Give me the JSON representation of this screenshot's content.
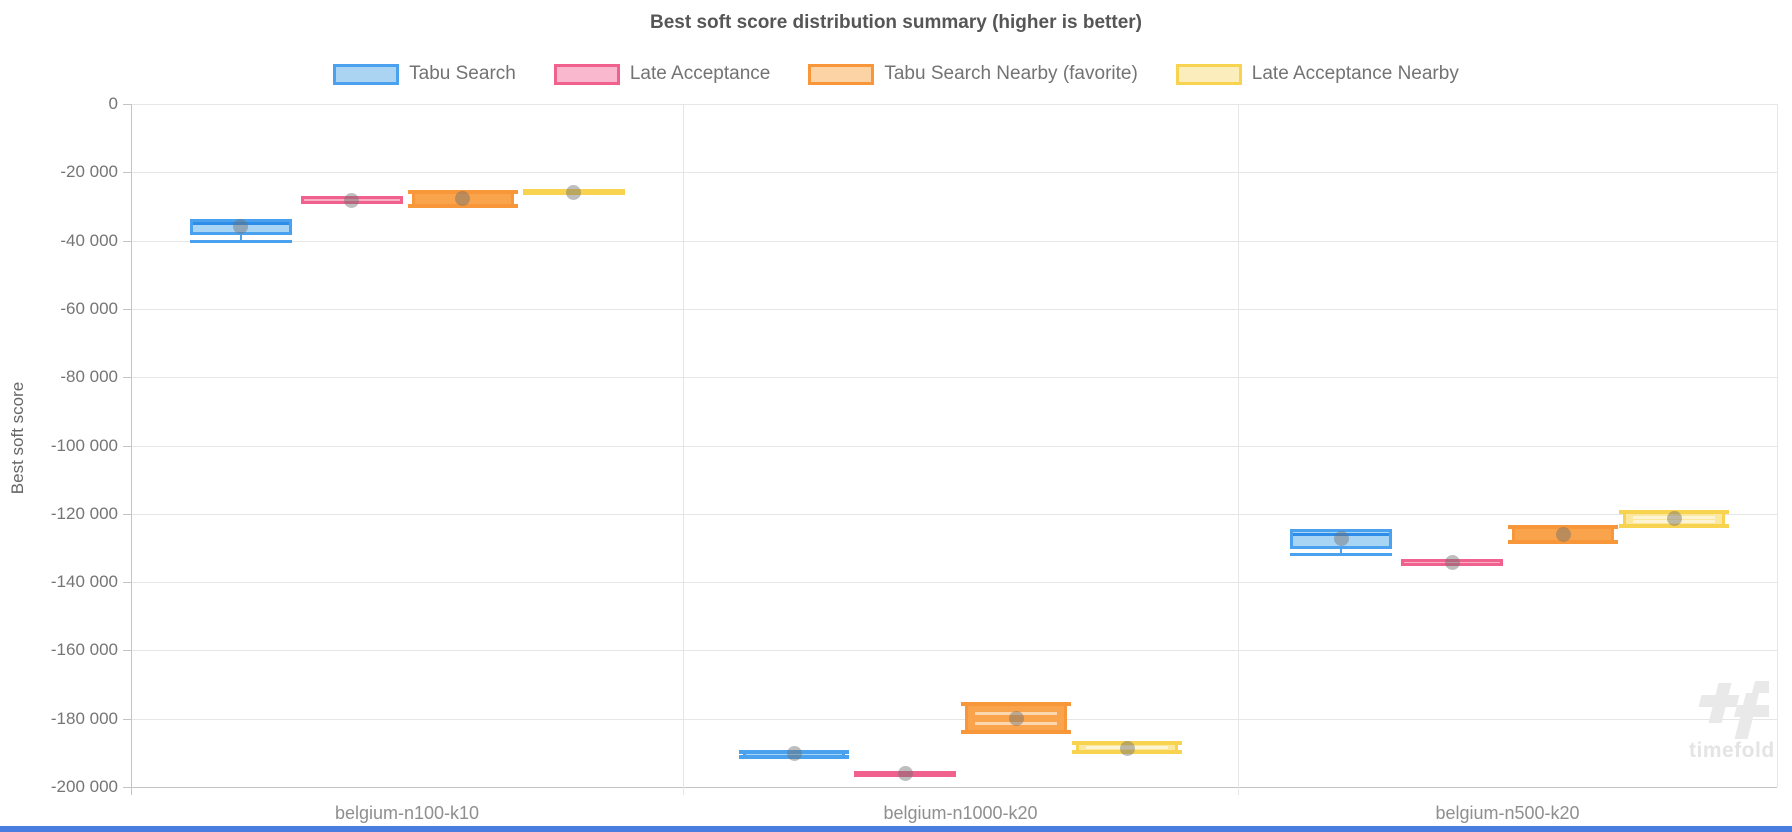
{
  "title": "Best soft score distribution summary (higher is better)",
  "watermark": {
    "logo": "timefold-logo",
    "text": "timefold"
  },
  "chart_data": {
    "type": "boxplot",
    "title": "Best soft score distribution summary (higher is better)",
    "ylabel": "Best soft score",
    "ylim": [
      -200000,
      0
    ],
    "grid": true,
    "legend_position": "top-center",
    "y_ticks": {
      "values": [
        0,
        -20000,
        -40000,
        -60000,
        -80000,
        -100000,
        -120000,
        -140000,
        -160000,
        -180000,
        -200000
      ],
      "labels": [
        "0",
        "-20 000",
        "-40 000",
        "-60 000",
        "-80 000",
        "-100 000",
        "-120 000",
        "-140 000",
        "-160 000",
        "-180 000",
        "-200 000"
      ]
    },
    "categories": [
      "belgium-n100-k10",
      "belgium-n1000-k20",
      "belgium-n500-k20"
    ],
    "series": [
      {
        "name": "Tabu Search",
        "colors": {
          "border": "#4aa2ef",
          "fill": "#a9d5f5",
          "legend_fill": "#abd4f3",
          "median": "#2e8de8"
        },
        "boxes": [
          {
            "high": -33600,
            "low": -38300,
            "median": -34800,
            "min": -40000,
            "mean": -36000,
            "caps": "below"
          },
          {
            "high": -189500,
            "low": -191400,
            "median": null,
            "min": null,
            "mean": -190200,
            "caps": "edges"
          },
          {
            "high": -124500,
            "low": -130400,
            "median": -126000,
            "min": -131800,
            "mean": -127200,
            "caps": "below"
          }
        ]
      },
      {
        "name": "Late Acceptance",
        "colors": {
          "border": "#f0618e",
          "fill": "#f7b0c6",
          "legend_fill": "#f9b8cd",
          "median": null
        },
        "boxes": [
          {
            "high": -26900,
            "low": -29300,
            "median": null,
            "min": null,
            "mean": -28300,
            "caps": "none"
          },
          {
            "high": -195200,
            "low": -196800,
            "median": null,
            "min": null,
            "mean": -196000,
            "caps": "none"
          },
          {
            "high": -133300,
            "low": -135300,
            "median": null,
            "min": null,
            "mean": -134400,
            "caps": "none"
          }
        ]
      },
      {
        "name": "Tabu Search Nearby (favorite)",
        "colors": {
          "border": "#f8973a",
          "fill": "#f9a44c",
          "legend_fill": "#fbd3a4",
          "median": null
        },
        "boxes": [
          {
            "high": -25500,
            "low": -30300,
            "median": null,
            "min": null,
            "mean": -27600,
            "caps": "edges"
          },
          {
            "high": -175300,
            "low": -184300,
            "inner_lines": [
              -178200,
              -181200
            ],
            "median": null,
            "min": null,
            "mean": -179900,
            "caps": "edges"
          },
          {
            "high": -123600,
            "low": -128500,
            "median": null,
            "min": null,
            "mean": -126000,
            "caps": "edges"
          }
        ]
      },
      {
        "name": "Late Acceptance Nearby",
        "colors": {
          "border": "#f8d34f",
          "fill": "#fbe79d",
          "legend_fill": "#fceebc",
          "median": null
        },
        "boxes": [
          {
            "high": -24900,
            "low": -26700,
            "median": null,
            "min": null,
            "mean": -25800,
            "caps": "none"
          },
          {
            "high": -186700,
            "low": -190000,
            "inner_lines": [
              -188300
            ],
            "median": null,
            "min": null,
            "mean": -188800,
            "caps": "edges"
          },
          {
            "high": -119200,
            "low": -123800,
            "inner_lines": [
              -120900,
              -122100
            ],
            "median": null,
            "min": null,
            "mean": -121300,
            "caps": "edges"
          }
        ]
      }
    ]
  }
}
